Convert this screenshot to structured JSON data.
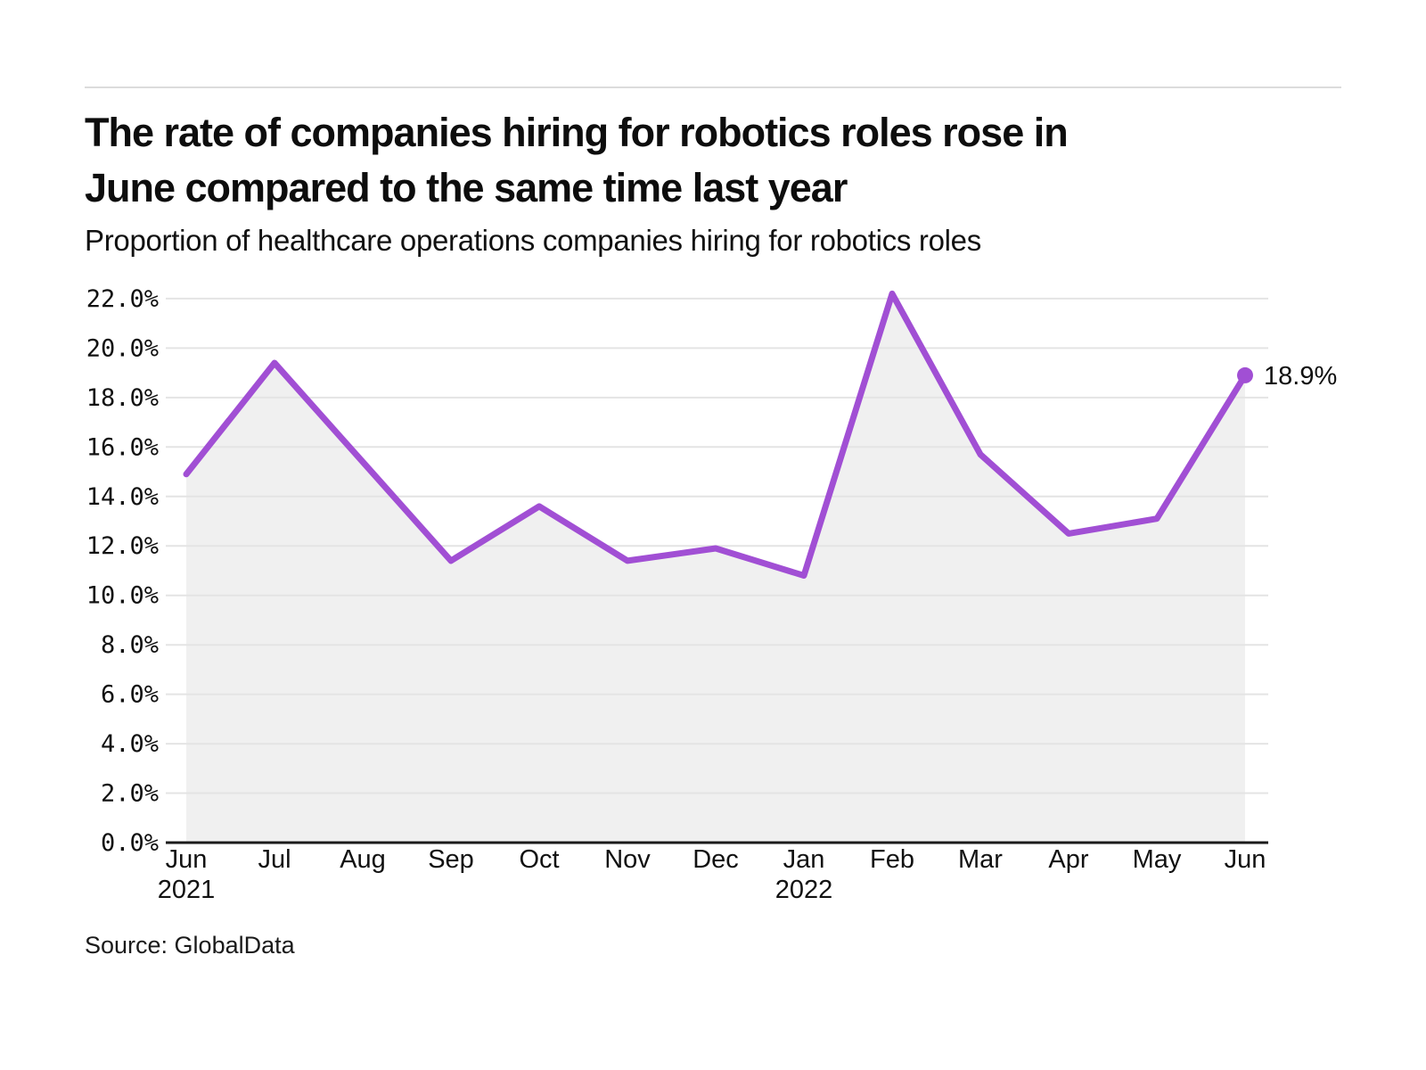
{
  "header": {
    "title_line1": "The rate of companies hiring for robotics roles rose in",
    "title_line2": "June compared to the same time last year",
    "subtitle": "Proportion of healthcare operations companies hiring for robotics roles"
  },
  "footer": {
    "source": "Source: GlobalData"
  },
  "chart_data": {
    "type": "line",
    "title": "The rate of companies hiring for robotics roles rose in June compared to the same time last year",
    "subtitle": "Proportion of healthcare operations companies hiring for robotics roles",
    "categories": [
      "Jun",
      "Jul",
      "Aug",
      "Sep",
      "Oct",
      "Nov",
      "Dec",
      "Jan",
      "Feb",
      "Mar",
      "Apr",
      "May",
      "Jun"
    ],
    "year_labels": [
      {
        "index": 0,
        "label": "2021"
      },
      {
        "index": 7,
        "label": "2022"
      }
    ],
    "series": [
      {
        "name": "Proportion of healthcare operations companies hiring for robotics roles",
        "values": [
          14.9,
          19.4,
          15.4,
          11.4,
          13.6,
          11.4,
          11.9,
          10.8,
          22.2,
          15.7,
          12.5,
          13.1,
          18.9
        ]
      }
    ],
    "end_label": "18.9%",
    "xlabel": "",
    "ylabel": "",
    "ylim": [
      0,
      22
    ],
    "ytick_step": 2,
    "ytick_format": "one_decimal_percent",
    "grid": true,
    "legend": "none",
    "line_color": "#a14fd4",
    "fill_color": "#f0f0f0",
    "grid_color": "#e4e4e4",
    "axis_color": "#1a1a1a",
    "text_color": "#111111"
  }
}
